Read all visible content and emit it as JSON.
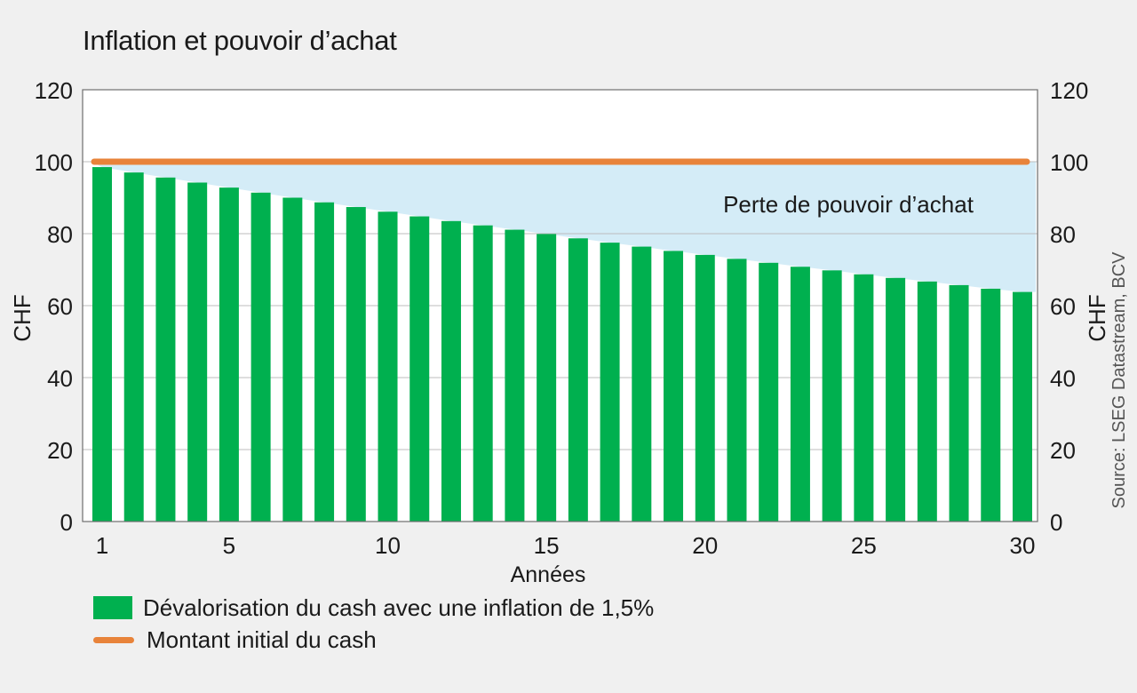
{
  "title": "Inflation et pouvoir d’achat",
  "source": "Source: LSEG Datastream, BCV",
  "colors": {
    "bar": "#00b04f",
    "line": "#e8833a",
    "loss_area": "#d4ecf7",
    "plot_bg": "#ffffff"
  },
  "chart_data": {
    "type": "bar",
    "title": "Inflation et pouvoir d’achat",
    "xlabel": "Années",
    "ylabel": "CHF",
    "ylabel_right": "CHF",
    "ylim": [
      0,
      120
    ],
    "yticks": [
      0,
      20,
      40,
      60,
      80,
      100,
      120
    ],
    "xticks": [
      1,
      5,
      10,
      15,
      20,
      25,
      30
    ],
    "x": [
      1,
      2,
      3,
      4,
      5,
      6,
      7,
      8,
      9,
      10,
      11,
      12,
      13,
      14,
      15,
      16,
      17,
      18,
      19,
      20,
      21,
      22,
      23,
      24,
      25,
      26,
      27,
      28,
      29,
      30
    ],
    "series": [
      {
        "name": "Dévalorisation du cash avec une inflation de 1,5%",
        "type": "bar",
        "values": [
          98.5,
          97.0,
          95.6,
          94.2,
          92.8,
          91.4,
          90.0,
          88.7,
          87.4,
          86.1,
          84.8,
          83.5,
          82.3,
          81.1,
          79.9,
          78.7,
          77.5,
          76.4,
          75.2,
          74.1,
          73.0,
          71.9,
          70.8,
          69.8,
          68.7,
          67.7,
          66.7,
          65.7,
          64.7,
          63.8
        ]
      },
      {
        "name": "Montant initial du cash",
        "type": "line",
        "values": [
          100,
          100,
          100,
          100,
          100,
          100,
          100,
          100,
          100,
          100,
          100,
          100,
          100,
          100,
          100,
          100,
          100,
          100,
          100,
          100,
          100,
          100,
          100,
          100,
          100,
          100,
          100,
          100,
          100,
          100
        ]
      }
    ],
    "annotation": "Perte de pouvoir d’achat",
    "grid": true,
    "legend_position": "bottom-left"
  }
}
